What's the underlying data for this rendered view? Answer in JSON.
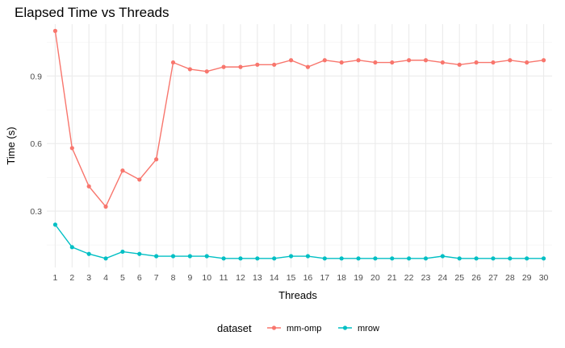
{
  "chart_data": {
    "type": "line",
    "title": "Elapsed Time vs Threads",
    "xlabel": "Threads",
    "ylabel": "Time (s)",
    "x": [
      1,
      2,
      3,
      4,
      5,
      6,
      7,
      8,
      9,
      10,
      11,
      12,
      13,
      14,
      15,
      16,
      17,
      18,
      19,
      20,
      21,
      22,
      23,
      24,
      25,
      26,
      27,
      28,
      29,
      30
    ],
    "xlim": [
      0.5,
      30.5
    ],
    "ylim": [
      0.05,
      1.13
    ],
    "yticks": [
      0.3,
      0.6,
      0.9
    ],
    "ytick_labels": [
      "0.3",
      "0.6",
      "0.9"
    ],
    "grid": true,
    "legend": {
      "title": "dataset",
      "position": "bottom"
    },
    "series": [
      {
        "name": "mm-omp",
        "color": "#F8766D",
        "values": [
          1.1,
          0.58,
          0.41,
          0.32,
          0.48,
          0.44,
          0.53,
          0.96,
          0.93,
          0.92,
          0.94,
          0.94,
          0.95,
          0.95,
          0.97,
          0.94,
          0.97,
          0.96,
          0.97,
          0.96,
          0.96,
          0.97,
          0.97,
          0.96,
          0.95,
          0.96,
          0.96,
          0.97,
          0.96,
          0.97
        ]
      },
      {
        "name": "mrow",
        "color": "#00BFC4",
        "values": [
          0.24,
          0.14,
          0.11,
          0.09,
          0.12,
          0.11,
          0.1,
          0.1,
          0.1,
          0.1,
          0.09,
          0.09,
          0.09,
          0.09,
          0.1,
          0.1,
          0.09,
          0.09,
          0.09,
          0.09,
          0.09,
          0.09,
          0.09,
          0.1,
          0.09,
          0.09,
          0.09,
          0.09,
          0.09,
          0.09
        ]
      }
    ]
  }
}
